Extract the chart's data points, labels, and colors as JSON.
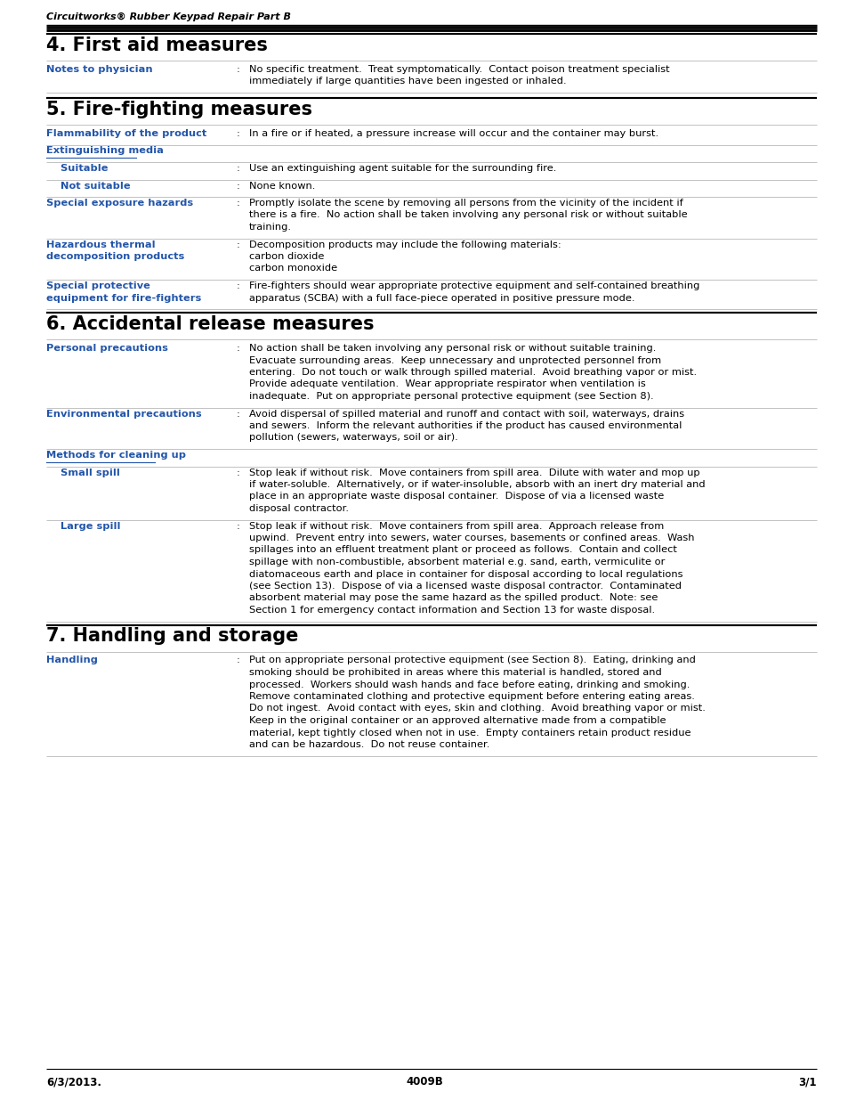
{
  "bg_color": "#ffffff",
  "text_color": "#000000",
  "blue_color": "#2255aa",
  "header_italic": "Circuitworks® Rubber Keypad Repair Part B",
  "footer_left": "6/3/2013.",
  "footer_center": "4009B",
  "footer_right": "3/1"
}
